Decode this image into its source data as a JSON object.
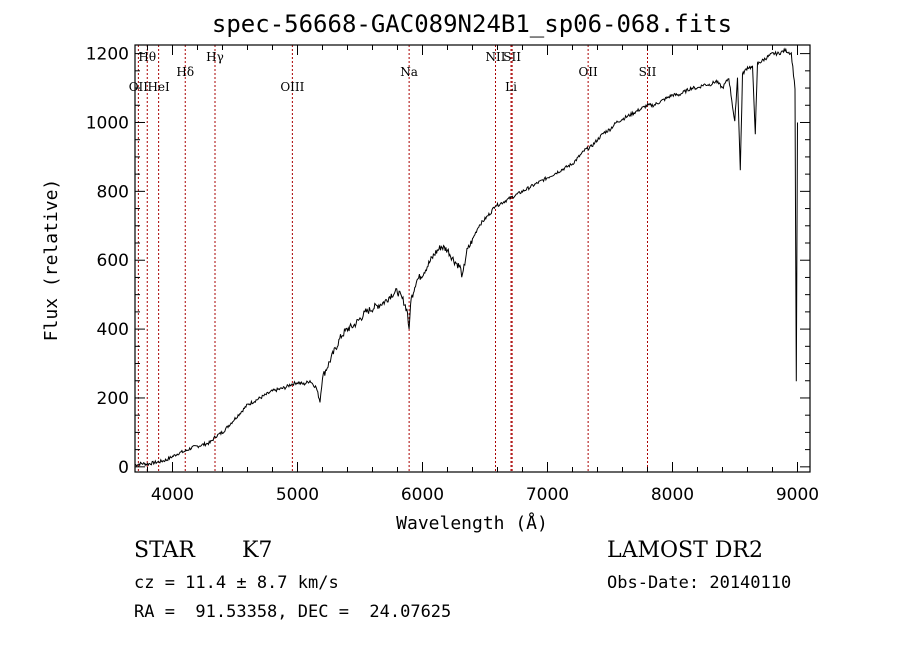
{
  "chart_data": {
    "type": "line",
    "title": "spec-56668-GAC089N24B1_sp06-068.fits",
    "xlabel": "Wavelength (Å)",
    "ylabel": "Flux (relative)",
    "xlim": [
      3700,
      9100
    ],
    "ylim": [
      -15,
      1225
    ],
    "x_ticks": [
      4000,
      5000,
      6000,
      7000,
      8000,
      9000
    ],
    "y_ticks": [
      0,
      200,
      400,
      600,
      800,
      1000,
      1200
    ],
    "grid": false,
    "legend": "none",
    "line_color": "#000000",
    "marker_color": "#aa0000",
    "spectral_lines": [
      {
        "label": "Hθ",
        "x": 3798,
        "row": 0
      },
      {
        "label": "OII",
        "x": 3727,
        "row": 1
      },
      {
        "label": "HeI",
        "x": 3889,
        "row": 1
      },
      {
        "label": "Hδ",
        "x": 4102,
        "row": 0.5
      },
      {
        "label": "Hγ",
        "x": 4340,
        "row": 0
      },
      {
        "label": "OIII",
        "x": 4959,
        "row": 1
      },
      {
        "label": "Na",
        "x": 5893,
        "row": 0.5
      },
      {
        "label": "NII",
        "x": 6584,
        "row": 0
      },
      {
        "label": "SII",
        "x": 6717,
        "row": 0
      },
      {
        "label": "Li",
        "x": 6708,
        "row": 1
      },
      {
        "label": "OII",
        "x": 7325,
        "row": 0.5
      },
      {
        "label": "SII",
        "x": 7800,
        "row": 0.5
      }
    ],
    "series": [
      {
        "x": [
          3700,
          3750,
          3800,
          3850,
          3900,
          3950,
          4000,
          4050,
          4100,
          4150,
          4200,
          4250,
          4300,
          4350,
          4400,
          4450,
          4500,
          4550,
          4600,
          4650,
          4700,
          4750,
          4800,
          4850,
          4900,
          4950,
          5000,
          5050,
          5100,
          5150,
          5180,
          5200,
          5250,
          5300,
          5350,
          5400,
          5450,
          5500,
          5550,
          5600,
          5650,
          5700,
          5750,
          5800,
          5850,
          5880,
          5893,
          5905,
          5950,
          6000,
          6050,
          6100,
          6150,
          6200,
          6250,
          6300,
          6320,
          6350,
          6400,
          6450,
          6500,
          6550,
          6580,
          6600,
          6650,
          6700,
          6750,
          6800,
          6850,
          6900,
          6950,
          7000,
          7050,
          7100,
          7150,
          7200,
          7250,
          7300,
          7350,
          7400,
          7450,
          7500,
          7550,
          7600,
          7650,
          7700,
          7750,
          7800,
          7850,
          7900,
          7950,
          8000,
          8050,
          8100,
          8150,
          8200,
          8250,
          8300,
          8350,
          8400,
          8450,
          8498,
          8520,
          8542,
          8560,
          8600,
          8640,
          8662,
          8680,
          8720,
          8760,
          8800,
          8850,
          8900,
          8950,
          8980,
          8990,
          9000
        ],
        "y": [
          5,
          10,
          8,
          12,
          15,
          20,
          30,
          40,
          45,
          55,
          60,
          65,
          70,
          90,
          100,
          120,
          140,
          160,
          180,
          190,
          200,
          210,
          220,
          225,
          230,
          240,
          245,
          240,
          250,
          230,
          190,
          260,
          300,
          340,
          380,
          400,
          410,
          430,
          450,
          460,
          470,
          480,
          500,
          510,
          480,
          450,
          390,
          480,
          540,
          560,
          590,
          620,
          640,
          630,
          600,
          580,
          550,
          620,
          660,
          700,
          720,
          740,
          760,
          760,
          770,
          780,
          790,
          800,
          810,
          820,
          830,
          840,
          850,
          860,
          870,
          880,
          900,
          920,
          930,
          950,
          970,
          980,
          1000,
          1010,
          1020,
          1030,
          1040,
          1050,
          1050,
          1060,
          1070,
          1080,
          1080,
          1090,
          1100,
          1100,
          1110,
          1110,
          1120,
          1100,
          1130,
          1000,
          1130,
          860,
          1140,
          1160,
          1160,
          970,
          1170,
          1180,
          1190,
          1200,
          1200,
          1210,
          1200,
          1100,
          250,
          1000
        ]
      }
    ]
  },
  "info": {
    "object_class": "STAR",
    "subclass": "K7",
    "survey": "LAMOST DR2",
    "redshift": "cz = 11.4 ± 8.7 km/s",
    "obs_date": "Obs-Date: 20140110",
    "coords": "RA =  91.53358, DEC =  24.07625"
  }
}
